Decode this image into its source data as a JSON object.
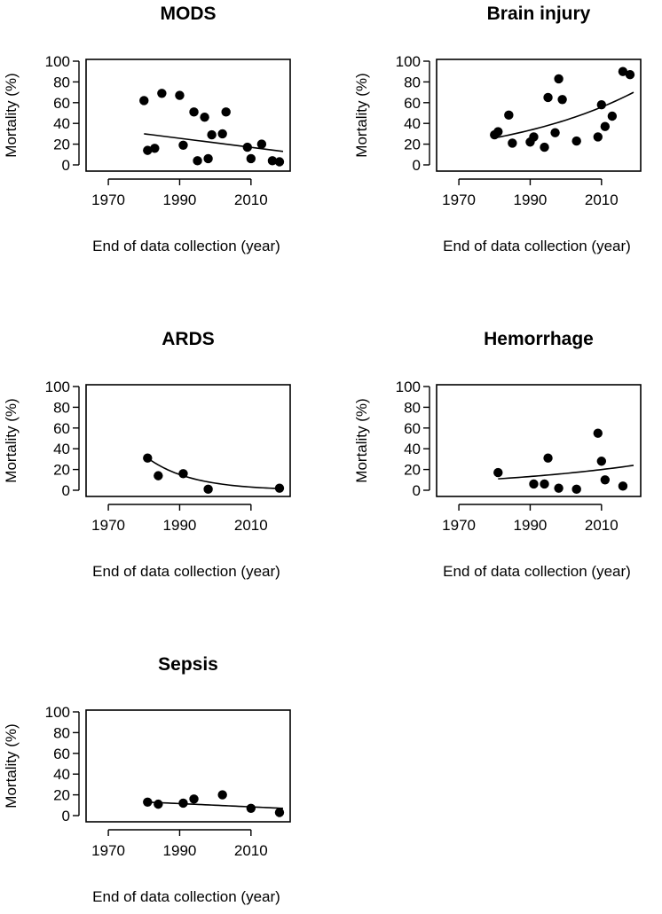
{
  "figure": {
    "background": "#ffffff",
    "ink": "#000000"
  },
  "chart_data": [
    {
      "type": "scatter",
      "title": "MODS",
      "xlabel": "End of data collection (year)",
      "ylabel": "Mortality (%)",
      "xlim": [
        1965,
        2020
      ],
      "ylim": [
        0,
        100
      ],
      "xticks": [
        1970,
        1990,
        2010
      ],
      "yticks": [
        0,
        20,
        40,
        60,
        80,
        100
      ],
      "points": [
        [
          1980,
          62
        ],
        [
          1981,
          14
        ],
        [
          1983,
          16
        ],
        [
          1985,
          69
        ],
        [
          1990,
          67
        ],
        [
          1991,
          19
        ],
        [
          1994,
          51
        ],
        [
          1995,
          4
        ],
        [
          1997,
          46
        ],
        [
          1998,
          6
        ],
        [
          1999,
          29
        ],
        [
          2002,
          30
        ],
        [
          2003,
          51
        ],
        [
          2009,
          17
        ],
        [
          2010,
          6
        ],
        [
          2013,
          20
        ],
        [
          2016,
          4
        ],
        [
          2018,
          3
        ]
      ],
      "trend": {
        "start": [
          1980,
          30
        ],
        "end": [
          2019,
          13
        ],
        "shape": "linear"
      }
    },
    {
      "type": "scatter",
      "title": "Brain injury",
      "xlabel": "End of data collection (year)",
      "ylabel": "Mortality (%)",
      "xlim": [
        1965,
        2020
      ],
      "ylim": [
        0,
        100
      ],
      "xticks": [
        1970,
        1990,
        2010
      ],
      "yticks": [
        0,
        20,
        40,
        60,
        80,
        100
      ],
      "points": [
        [
          1980,
          29
        ],
        [
          1981,
          32
        ],
        [
          1984,
          48
        ],
        [
          1985,
          21
        ],
        [
          1990,
          22
        ],
        [
          1991,
          27
        ],
        [
          1994,
          17
        ],
        [
          1995,
          65
        ],
        [
          1997,
          31
        ],
        [
          1998,
          83
        ],
        [
          1999,
          63
        ],
        [
          2003,
          23
        ],
        [
          2009,
          27
        ],
        [
          2010,
          58
        ],
        [
          2011,
          37
        ],
        [
          2013,
          47
        ],
        [
          2016,
          90
        ],
        [
          2018,
          87
        ]
      ],
      "trend": {
        "start": [
          1980,
          26
        ],
        "end": [
          2019,
          70
        ],
        "shape": "exponential"
      }
    },
    {
      "type": "scatter",
      "title": "ARDS",
      "xlabel": "End of data collection (year)",
      "ylabel": "Mortality (%)",
      "xlim": [
        1965,
        2020
      ],
      "ylim": [
        0,
        100
      ],
      "xticks": [
        1970,
        1990,
        2010
      ],
      "yticks": [
        0,
        20,
        40,
        60,
        80,
        100
      ],
      "points": [
        [
          1981,
          31
        ],
        [
          1984,
          14
        ],
        [
          1991,
          16
        ],
        [
          1998,
          1
        ],
        [
          2018,
          2
        ]
      ],
      "trend": {
        "start": [
          1981,
          31
        ],
        "end": [
          2019,
          1.5
        ],
        "shape": "exponential"
      }
    },
    {
      "type": "scatter",
      "title": "Hemorrhage",
      "xlabel": "End of data collection (year)",
      "ylabel": "Mortality (%)",
      "xlim": [
        1965,
        2020
      ],
      "ylim": [
        0,
        100
      ],
      "xticks": [
        1970,
        1990,
        2010
      ],
      "yticks": [
        0,
        20,
        40,
        60,
        80,
        100
      ],
      "points": [
        [
          1981,
          17
        ],
        [
          1991,
          6
        ],
        [
          1994,
          6
        ],
        [
          1995,
          31
        ],
        [
          1998,
          2
        ],
        [
          2003,
          1
        ],
        [
          2009,
          55
        ],
        [
          2010,
          28
        ],
        [
          2011,
          10
        ],
        [
          2016,
          4
        ]
      ],
      "trend": {
        "start": [
          1981,
          11
        ],
        "end": [
          2019,
          24
        ],
        "shape": "exponential"
      }
    },
    {
      "type": "scatter",
      "title": "Sepsis",
      "xlabel": "End of data collection (year)",
      "ylabel": "Mortality (%)",
      "xlim": [
        1965,
        2020
      ],
      "ylim": [
        0,
        100
      ],
      "xticks": [
        1970,
        1990,
        2010
      ],
      "yticks": [
        0,
        20,
        40,
        60,
        80,
        100
      ],
      "points": [
        [
          1981,
          13
        ],
        [
          1984,
          11
        ],
        [
          1991,
          12
        ],
        [
          1994,
          16
        ],
        [
          2002,
          20
        ],
        [
          2010,
          7
        ],
        [
          2018,
          3
        ]
      ],
      "trend": {
        "start": [
          1981,
          13
        ],
        "end": [
          2019,
          7
        ],
        "shape": "linear"
      }
    }
  ]
}
